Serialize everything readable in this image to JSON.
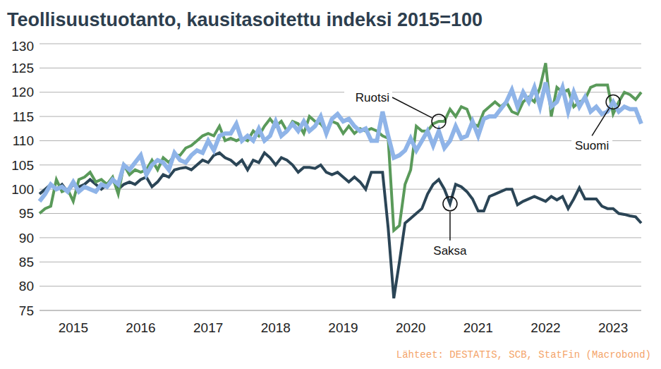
{
  "chart_data": {
    "type": "line",
    "title": "Teollisuustuotanto, kausitasoitettu indeksi 2015=100",
    "source": "Lähteet: DESTATIS, SCB, StatFin (Macrobond)",
    "categories": [
      null,
      null,
      null,
      null,
      null,
      null,
      "2015",
      null,
      null,
      null,
      null,
      null,
      null,
      null,
      null,
      null,
      null,
      null,
      "2016",
      null,
      null,
      null,
      null,
      null,
      null,
      null,
      null,
      null,
      null,
      null,
      "2017",
      null,
      null,
      null,
      null,
      null,
      null,
      null,
      null,
      null,
      null,
      null,
      "2018",
      null,
      null,
      null,
      null,
      null,
      null,
      null,
      null,
      null,
      null,
      null,
      "2019",
      null,
      null,
      null,
      null,
      null,
      null,
      null,
      null,
      null,
      null,
      null,
      "2020",
      null,
      null,
      null,
      null,
      null,
      null,
      null,
      null,
      null,
      null,
      null,
      "2021",
      null,
      null,
      null,
      null,
      null,
      null,
      null,
      null,
      null,
      null,
      null,
      "2022",
      null,
      null,
      null,
      null,
      null,
      null,
      null,
      null,
      null,
      null,
      null,
      "2023",
      null,
      null,
      null,
      null,
      null
    ],
    "series": [
      {
        "name": "Saksa",
        "color": "#2b4556",
        "values": [
          99,
          100,
          101,
          100,
          101,
          99.5,
          101,
          100.5,
          101,
          102,
          101,
          100,
          101,
          102,
          100,
          101,
          101.5,
          101,
          102,
          102.5,
          100.5,
          101.5,
          103,
          102.5,
          104,
          104.3,
          104.5,
          104,
          105,
          106,
          105.5,
          107,
          107.5,
          106.5,
          106,
          105,
          106,
          104,
          106,
          105.5,
          107.5,
          106.5,
          105,
          106.5,
          106,
          105,
          103.5,
          104.5,
          104.5,
          104.3,
          105,
          103.5,
          103,
          103.5,
          102.5,
          101.5,
          102.5,
          101.5,
          100,
          103.5,
          103.5,
          103.5,
          92,
          77.5,
          85,
          93,
          94,
          95,
          96,
          99,
          101,
          102,
          100,
          97,
          101,
          100.5,
          99.5,
          98,
          95.5,
          95.5,
          98.5,
          99,
          99.5,
          100,
          100,
          96.8,
          97.5,
          98,
          98.5,
          98,
          97.5,
          98.5,
          97.8,
          98.5,
          96,
          98,
          100.3,
          98,
          98,
          98,
          96.5,
          96,
          96,
          95,
          94.8,
          94.5,
          94.3,
          93
        ]
      },
      {
        "name": "Ruotsi",
        "color": "#5a9a5a",
        "values": [
          95,
          96,
          96.5,
          102,
          99.5,
          100,
          97.5,
          102,
          102.5,
          103.5,
          101.5,
          102,
          101,
          102.5,
          99,
          105,
          103,
          104,
          103.5,
          104,
          106,
          104,
          106.5,
          105.5,
          107,
          107,
          108.5,
          109,
          110,
          111,
          111.5,
          111,
          113,
          110,
          110.5,
          110,
          110.5,
          110,
          112,
          111,
          113,
          114.5,
          113,
          114,
          112,
          114,
          113.5,
          111.5,
          115,
          114,
          113.5,
          112,
          114,
          113.5,
          111.5,
          113,
          111.5,
          112.5,
          112,
          112.5,
          112,
          111,
          110.5,
          91.5,
          92.5,
          101,
          104,
          113,
          112,
          112,
          113.5,
          114,
          114,
          116.5,
          115,
          117,
          116.5,
          113.5,
          113,
          116,
          117,
          118,
          117,
          118,
          116,
          115.5,
          118,
          119,
          118,
          121,
          126,
          115,
          121,
          120,
          120.5,
          117,
          118,
          118.5,
          121,
          121.5,
          121.5,
          121.5,
          115.5,
          118,
          120,
          119.5,
          118.5,
          120
        ]
      },
      {
        "name": "Suomi",
        "color": "#8fb4e8",
        "values": [
          97.5,
          99,
          101,
          100,
          100.5,
          99.5,
          101.5,
          99.5,
          100.5,
          100,
          99.5,
          101,
          100.5,
          102,
          101,
          105,
          104,
          105.5,
          107,
          103,
          105,
          106,
          105.5,
          104,
          107.5,
          106,
          105.5,
          107,
          108,
          107.5,
          110,
          108,
          111,
          111.5,
          111.5,
          113.5,
          110,
          111,
          110,
          112.5,
          110,
          111,
          114,
          111,
          112,
          113.5,
          112,
          114,
          112,
          113,
          115,
          111.5,
          114.5,
          115.5,
          114,
          114.5,
          113,
          112,
          112.5,
          110,
          110,
          116,
          111,
          106.5,
          107,
          108,
          110.5,
          108,
          110,
          112,
          109,
          112,
          108.5,
          110,
          113,
          110.5,
          111,
          114,
          111,
          114.5,
          115,
          115,
          116.5,
          118,
          120.5,
          117,
          120,
          118,
          121,
          117,
          122,
          117,
          118,
          121,
          116,
          120,
          117,
          119,
          116,
          117,
          115.5,
          116,
          118,
          116,
          117,
          116.5,
          116.5,
          113.5
        ]
      }
    ],
    "ylim": [
      75,
      130
    ],
    "yticks": [
      75,
      80,
      85,
      90,
      95,
      100,
      105,
      110,
      115,
      120,
      125,
      130
    ],
    "grid": true
  }
}
